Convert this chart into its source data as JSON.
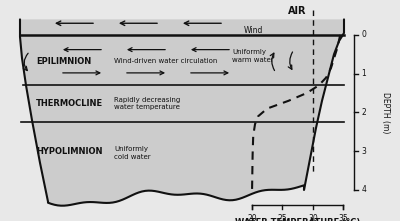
{
  "bg_color": "#e8e8e8",
  "pond_fill_color": "#cccccc",
  "line_color": "#111111",
  "text_color": "#111111",
  "epilimnion_label": "EPILIMNION",
  "thermocline_label": "THERMOCLINE",
  "hypolimnion_label": "HYPOLIMNION",
  "epi_desc": "Wind-driven water circulation",
  "thermo_desc": "Rapidly decreasing\nwater temperature",
  "hypo_desc": "Uniformly\ncold water",
  "warm_label": "Uniformly\nwarm water",
  "wind_label": "Wind",
  "air_label": "AIR",
  "depth_label": "DEPTH (m)",
  "temp_label": "WATER TEMPERATURE (°C)",
  "depth_ticks": [
    0,
    1,
    2,
    3,
    4
  ],
  "temp_ticks": [
    20,
    25,
    30,
    35
  ],
  "figsize": [
    4.0,
    2.21
  ],
  "dpi": 100,
  "xlim": [
    0,
    10
  ],
  "ylim": [
    4.8,
    -0.9
  ]
}
